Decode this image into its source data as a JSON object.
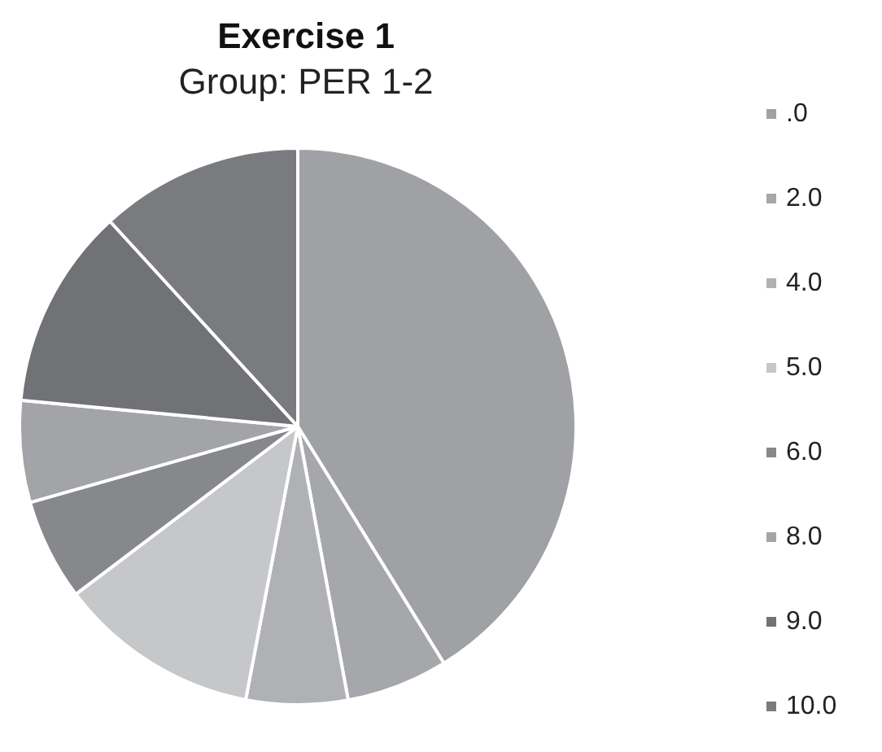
{
  "chart_data": {
    "type": "pie",
    "title": "Exercise 1",
    "subtitle": "Group: PER 1-2",
    "categories": [
      ".0",
      "2.0",
      "4.0",
      "5.0",
      "6.0",
      "8.0",
      "9.0",
      "10.0"
    ],
    "values": [
      41.2,
      5.9,
      5.9,
      11.7,
      5.9,
      5.9,
      11.7,
      11.8
    ],
    "colors": [
      "#a0a1a4",
      "#a6a7aa",
      "#b0b1b4",
      "#c6c7c9",
      "#87888c",
      "#a3a4a7",
      "#717276",
      "#7a7b7f"
    ],
    "legend": "right"
  }
}
